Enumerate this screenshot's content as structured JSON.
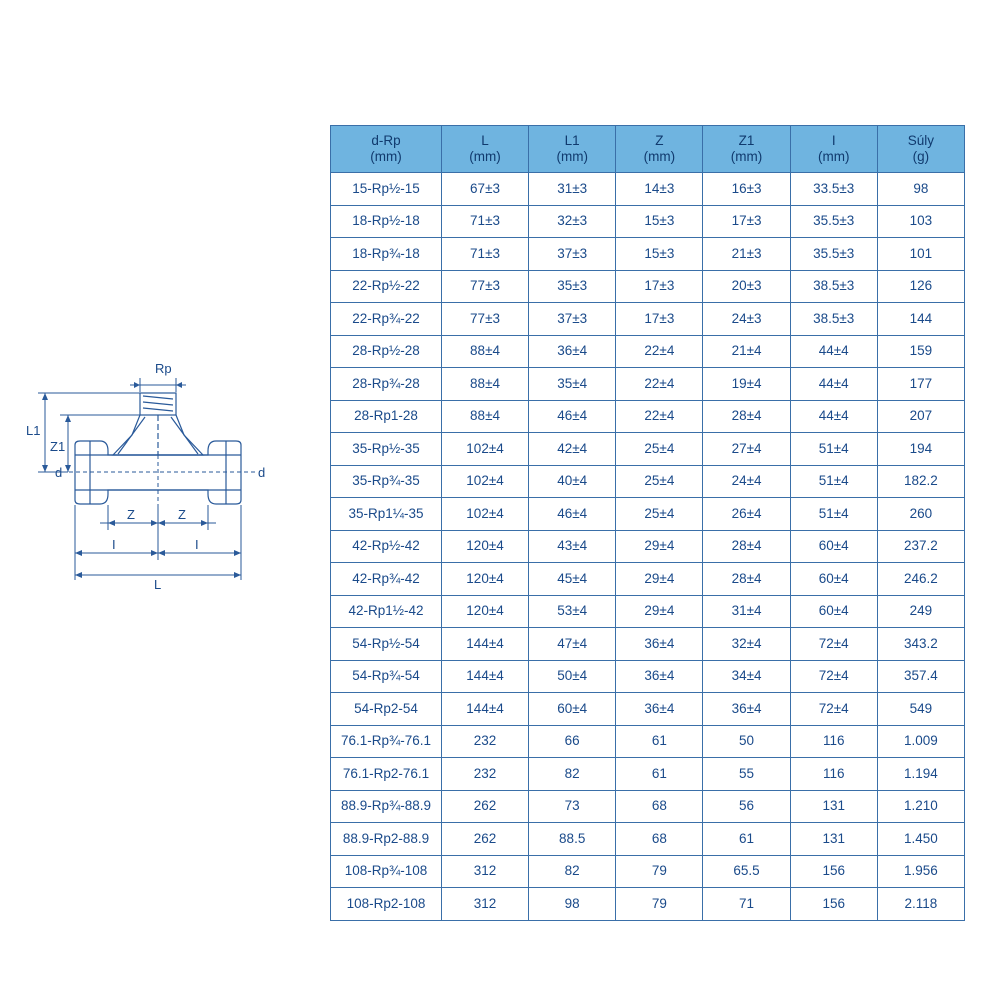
{
  "diagram": {
    "labels": {
      "Rp": "Rp",
      "L1": "L1",
      "Z1": "Z1",
      "d": "d",
      "Z": "Z",
      "I": "I",
      "L": "L"
    }
  },
  "table": {
    "header_bg": "#6fb4e0",
    "border_color": "#3a6fa8",
    "text_color": "#1a4a8a",
    "columns": [
      {
        "t1": "d-Rp",
        "t2": "(mm)"
      },
      {
        "t1": "L",
        "t2": "(mm)"
      },
      {
        "t1": "L1",
        "t2": "(mm)"
      },
      {
        "t1": "Z",
        "t2": "(mm)"
      },
      {
        "t1": "Z1",
        "t2": "(mm)"
      },
      {
        "t1": "I",
        "t2": "(mm)"
      },
      {
        "t1": "Súly",
        "t2": "(g)"
      }
    ],
    "rows": [
      [
        "15-Rp½-15",
        "67±3",
        "31±3",
        "14±3",
        "16±3",
        "33.5±3",
        "98"
      ],
      [
        "18-Rp½-18",
        "71±3",
        "32±3",
        "15±3",
        "17±3",
        "35.5±3",
        "103"
      ],
      [
        "18-Rp¾-18",
        "71±3",
        "37±3",
        "15±3",
        "21±3",
        "35.5±3",
        "101"
      ],
      [
        "22-Rp½-22",
        "77±3",
        "35±3",
        "17±3",
        "20±3",
        "38.5±3",
        "126"
      ],
      [
        "22-Rp¾-22",
        "77±3",
        "37±3",
        "17±3",
        "24±3",
        "38.5±3",
        "144"
      ],
      [
        "28-Rp½-28",
        "88±4",
        "36±4",
        "22±4",
        "21±4",
        "44±4",
        "159"
      ],
      [
        "28-Rp¾-28",
        "88±4",
        "35±4",
        "22±4",
        "19±4",
        "44±4",
        "177"
      ],
      [
        "28-Rp1-28",
        "88±4",
        "46±4",
        "22±4",
        "28±4",
        "44±4",
        "207"
      ],
      [
        "35-Rp½-35",
        "102±4",
        "42±4",
        "25±4",
        "27±4",
        "51±4",
        "194"
      ],
      [
        "35-Rp¾-35",
        "102±4",
        "40±4",
        "25±4",
        "24±4",
        "51±4",
        "182.2"
      ],
      [
        "35-Rp1¼-35",
        "102±4",
        "46±4",
        "25±4",
        "26±4",
        "51±4",
        "260"
      ],
      [
        "42-Rp½-42",
        "120±4",
        "43±4",
        "29±4",
        "28±4",
        "60±4",
        "237.2"
      ],
      [
        "42-Rp¾-42",
        "120±4",
        "45±4",
        "29±4",
        "28±4",
        "60±4",
        "246.2"
      ],
      [
        "42-Rp1½-42",
        "120±4",
        "53±4",
        "29±4",
        "31±4",
        "60±4",
        "249"
      ],
      [
        "54-Rp½-54",
        "144±4",
        "47±4",
        "36±4",
        "32±4",
        "72±4",
        "343.2"
      ],
      [
        "54-Rp¾-54",
        "144±4",
        "50±4",
        "36±4",
        "34±4",
        "72±4",
        "357.4"
      ],
      [
        "54-Rp2-54",
        "144±4",
        "60±4",
        "36±4",
        "36±4",
        "72±4",
        "549"
      ],
      [
        "76.1-Rp¾-76.1",
        "232",
        "66",
        "61",
        "50",
        "116",
        "1.009"
      ],
      [
        "76.1-Rp2-76.1",
        "232",
        "82",
        "61",
        "55",
        "116",
        "1.194"
      ],
      [
        "88.9-Rp¾-88.9",
        "262",
        "73",
        "68",
        "56",
        "131",
        "1.210"
      ],
      [
        "88.9-Rp2-88.9",
        "262",
        "88.5",
        "68",
        "61",
        "131",
        "1.450"
      ],
      [
        "108-Rp¾-108",
        "312",
        "82",
        "79",
        "65.5",
        "156",
        "1.956"
      ],
      [
        "108-Rp2-108",
        "312",
        "98",
        "79",
        "71",
        "156",
        "2.118"
      ]
    ]
  }
}
